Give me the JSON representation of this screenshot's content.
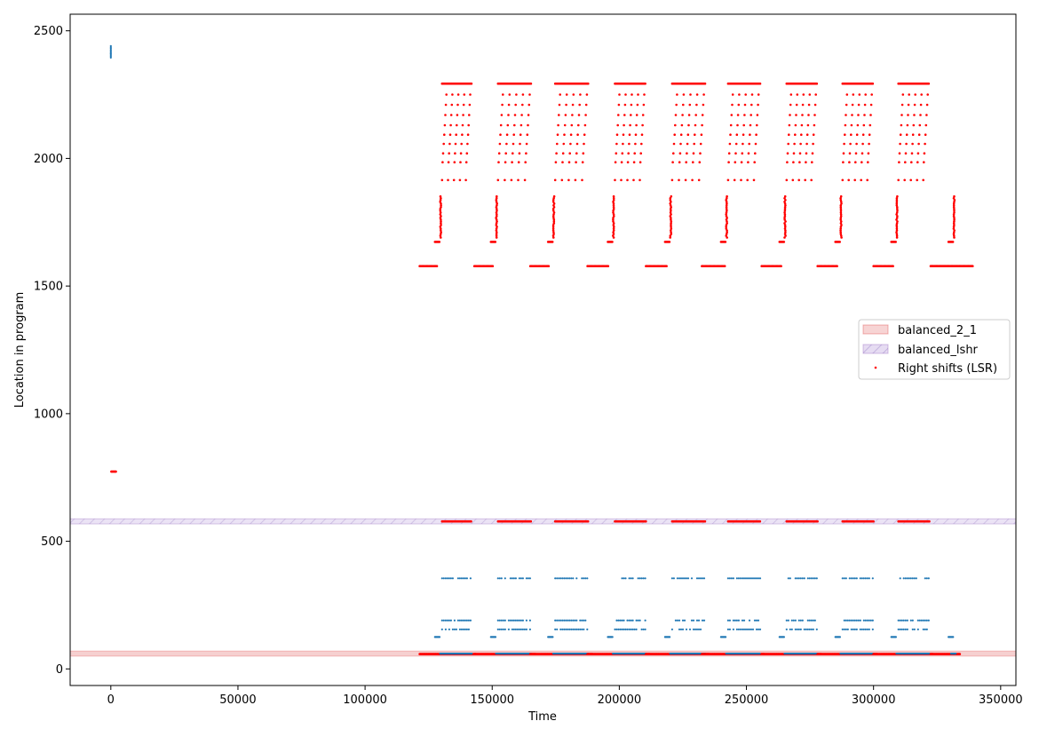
{
  "chart_data": {
    "type": "scatter",
    "title": "",
    "xlabel": "Time",
    "ylabel": "Location in program",
    "xlim": [
      -16000,
      356000
    ],
    "ylim": [
      -65,
      2565
    ],
    "x_ticks": [
      0,
      50000,
      100000,
      150000,
      200000,
      250000,
      300000,
      350000
    ],
    "x_tick_labels": [
      "0",
      "50000",
      "100000",
      "150000",
      "200000",
      "250000",
      "300000",
      "350000"
    ],
    "y_ticks": [
      0,
      500,
      1000,
      1500,
      2000,
      2500
    ],
    "y_tick_labels": [
      "0",
      "500",
      "1000",
      "1500",
      "2000",
      "2500"
    ],
    "grid": false,
    "legend_position": "center-right",
    "bands": [
      {
        "name": "balanced_2_1",
        "y_from": 50,
        "y_to": 70,
        "color": "#d62728",
        "style": "solid"
      },
      {
        "name": "balanced_lshr",
        "y_from": 568,
        "y_to": 588,
        "color": "#9467bd",
        "style": "hatched"
      }
    ],
    "series_colors": {
      "all_instructions": "#1f77b4",
      "right_shifts": "#ff0000"
    },
    "legend": {
      "entries": [
        {
          "label": "balanced_2_1",
          "kind": "band",
          "color": "#d62728"
        },
        {
          "label": "balanced_lshr",
          "kind": "band-hatched",
          "color": "#9467bd"
        },
        {
          "label": "Right shifts (LSR)",
          "kind": "marker",
          "color": "#ff0000"
        }
      ]
    },
    "startup": {
      "blue_cluster": {
        "x": 0,
        "y_min": 2395,
        "y_max": 2440
      },
      "red_cluster": {
        "x_min": 200,
        "x_max": 2000,
        "y": 773
      }
    },
    "iterations": [
      {
        "loop_start": 121500,
        "loop_end": 128500,
        "dense_start": 129500,
        "dense_end": 142000,
        "vertical_x": 129500
      },
      {
        "loop_start": 143000,
        "loop_end": 150500,
        "dense_start": 151500,
        "dense_end": 165500,
        "vertical_x": 151500
      },
      {
        "loop_start": 165000,
        "loop_end": 172500,
        "dense_start": 174000,
        "dense_end": 188000,
        "vertical_x": 174000
      },
      {
        "loop_start": 187500,
        "loop_end": 196000,
        "dense_start": 197500,
        "dense_end": 210500,
        "vertical_x": 197500
      },
      {
        "loop_start": 210500,
        "loop_end": 219000,
        "dense_start": 220000,
        "dense_end": 234000,
        "vertical_x": 220000
      },
      {
        "loop_start": 232500,
        "loop_end": 241500,
        "dense_start": 242000,
        "dense_end": 255500,
        "vertical_x": 242000
      },
      {
        "loop_start": 256000,
        "loop_end": 264000,
        "dense_start": 265000,
        "dense_end": 278000,
        "vertical_x": 265000
      },
      {
        "loop_start": 278000,
        "loop_end": 286000,
        "dense_start": 287000,
        "dense_end": 300000,
        "vertical_x": 287000
      },
      {
        "loop_start": 300000,
        "loop_end": 308000,
        "dense_start": 309000,
        "dense_end": 322000,
        "vertical_x": 309000
      },
      {
        "loop_start": 322500,
        "loop_end": 339000,
        "dense_start": 330500,
        "dense_end": 332500,
        "vertical_x": 331500
      }
    ],
    "red_levels": {
      "top": 2293,
      "diagonal_levels": [
        1915,
        1985,
        2020,
        2057,
        2093,
        2130,
        2170,
        2210,
        2250
      ],
      "loop_header": 1673,
      "loop_body": 1578,
      "vertical_range": [
        1690,
        1855
      ],
      "lshr_band": 578,
      "bottom": 58
    },
    "blue_levels": [
      355,
      190,
      155,
      125,
      60
    ]
  }
}
